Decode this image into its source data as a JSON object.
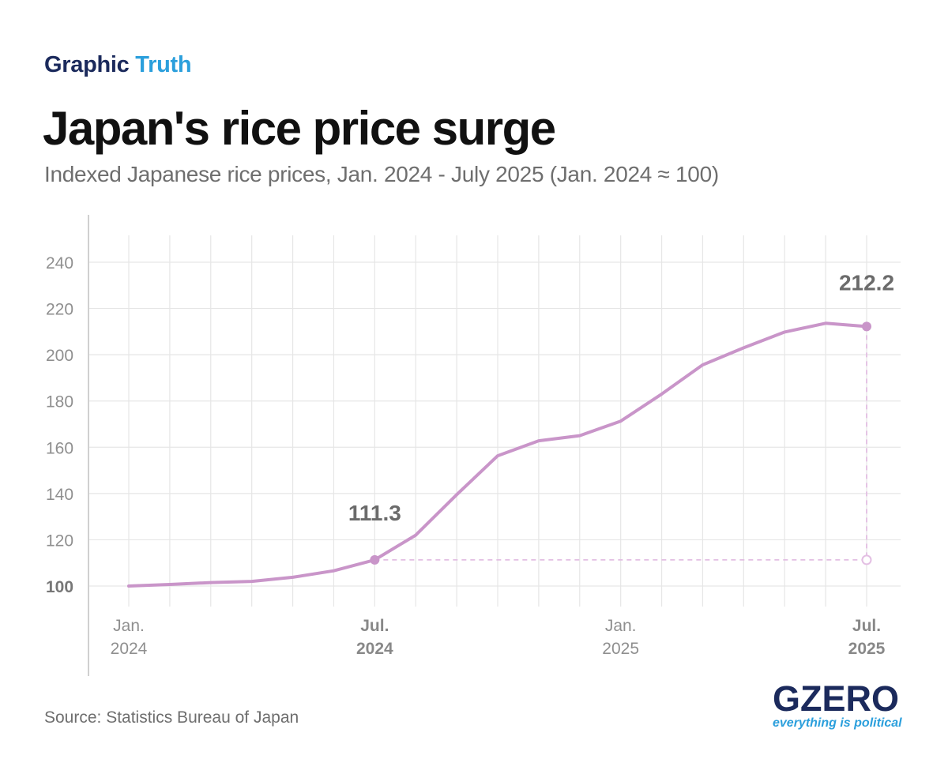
{
  "header": {
    "kicker_part1": "Graphic",
    "kicker_part2": "Truth",
    "title": "Japan's rice price surge",
    "subtitle": "Indexed Japanese rice prices, Jan. 2024 - July 2025 (Jan. 2024 ≈ 100)"
  },
  "footer": {
    "source": "Source: Statistics Bureau of Japan",
    "logo_text": "GZERO",
    "logo_tagline": "everything is political"
  },
  "colors": {
    "line": "#c995c9",
    "grid": "#e6e6e6",
    "kicker_dark": "#1b2a5c",
    "kicker_accent": "#2b9fdc"
  },
  "chart_data": {
    "type": "line",
    "title": "Japan's rice price surge",
    "xlabel": "",
    "ylabel": "",
    "ylim": [
      100,
      240
    ],
    "yticks": [
      100,
      120,
      140,
      160,
      180,
      200,
      220,
      240
    ],
    "grid": true,
    "x": [
      "2024-01",
      "2024-02",
      "2024-03",
      "2024-04",
      "2024-05",
      "2024-06",
      "2024-07",
      "2024-08",
      "2024-09",
      "2024-10",
      "2024-11",
      "2024-12",
      "2025-01",
      "2025-02",
      "2025-03",
      "2025-04",
      "2025-05",
      "2025-06",
      "2025-07"
    ],
    "x_tick_labels": [
      {
        "x": "2024-01",
        "line1": "Jan.",
        "line2": "2024",
        "bold": false
      },
      {
        "x": "2024-07",
        "line1": "Jul.",
        "line2": "2024",
        "bold": true
      },
      {
        "x": "2025-01",
        "line1": "Jan.",
        "line2": "2025",
        "bold": false
      },
      {
        "x": "2025-07",
        "line1": "Jul.",
        "line2": "2025",
        "bold": true
      }
    ],
    "series": [
      {
        "values": [
          100,
          100.7,
          101.5,
          102.0,
          103.8,
          106.6,
          111.3,
          122.0,
          139.5,
          156.3,
          162.8,
          165.0,
          171.3,
          183.0,
          195.6,
          203.0,
          209.8,
          213.6,
          212.2
        ]
      }
    ],
    "annotations": [
      {
        "x": "2024-07",
        "value": 111.3,
        "label": "111.3"
      },
      {
        "x": "2025-07",
        "value": 212.2,
        "label": "212.2"
      }
    ]
  }
}
